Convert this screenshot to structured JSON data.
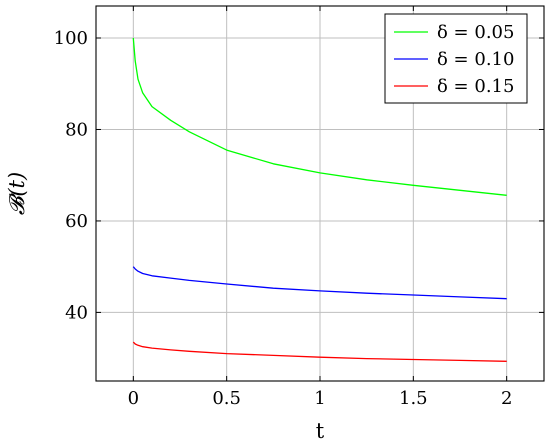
{
  "chart_data": {
    "type": "line",
    "title": "",
    "xlabel": "t",
    "ylabel": "𝓑(t)",
    "xlim": [
      -0.2,
      2.2
    ],
    "ylim": [
      25,
      107
    ],
    "xticks": [
      0,
      0.5,
      1,
      1.5,
      2
    ],
    "xtick_labels": [
      "0",
      "0.5",
      "1",
      "1.5",
      "2"
    ],
    "yticks": [
      40,
      60,
      80,
      100
    ],
    "ytick_labels": [
      "40",
      "60",
      "80",
      "100"
    ],
    "grid": true,
    "legend_position": "top-right",
    "series": [
      {
        "name": "δ = 0.05",
        "color": "#00ff00",
        "x": [
          0,
          0.01,
          0.025,
          0.05,
          0.1,
          0.2,
          0.3,
          0.5,
          0.75,
          1.0,
          1.25,
          1.5,
          1.75,
          2.0
        ],
        "y": [
          100,
          95,
          91,
          88,
          85,
          82,
          79.5,
          75.5,
          72.5,
          70.5,
          69,
          67.8,
          66.7,
          65.6
        ]
      },
      {
        "name": "δ = 0.10",
        "color": "#0000ff",
        "x": [
          0,
          0.01,
          0.025,
          0.05,
          0.1,
          0.2,
          0.3,
          0.5,
          0.75,
          1.0,
          1.25,
          1.5,
          1.75,
          2.0
        ],
        "y": [
          50,
          49.5,
          49,
          48.5,
          48,
          47.5,
          47,
          46.2,
          45.3,
          44.7,
          44.2,
          43.8,
          43.4,
          43
        ]
      },
      {
        "name": "δ = 0.15",
        "color": "#ff0000",
        "x": [
          0,
          0.01,
          0.025,
          0.05,
          0.1,
          0.2,
          0.3,
          0.5,
          0.75,
          1.0,
          1.25,
          1.5,
          1.75,
          2.0
        ],
        "y": [
          33.5,
          33.1,
          32.8,
          32.5,
          32.2,
          31.8,
          31.5,
          31,
          30.6,
          30.2,
          29.9,
          29.7,
          29.5,
          29.3
        ]
      }
    ]
  }
}
